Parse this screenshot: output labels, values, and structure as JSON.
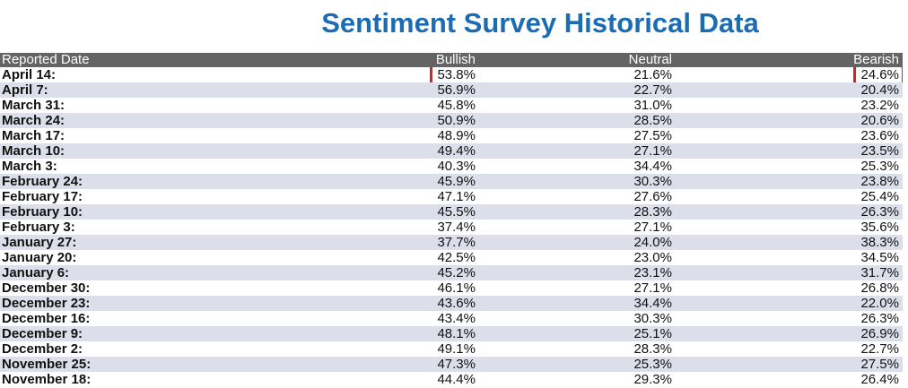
{
  "title": "Sentiment Survey Historical Data",
  "highlight_color": "#e0201c",
  "columns": [
    "Reported Date",
    "Bullish",
    "Neutral",
    "Bearish"
  ],
  "rows": [
    {
      "date": "April 14:",
      "bullish": "53.8%",
      "neutral": "21.6%",
      "bearish": "24.6%"
    },
    {
      "date": "April 7:",
      "bullish": "56.9%",
      "neutral": "22.7%",
      "bearish": "20.4%"
    },
    {
      "date": "March 31:",
      "bullish": "45.8%",
      "neutral": "31.0%",
      "bearish": "23.2%"
    },
    {
      "date": "March 24:",
      "bullish": "50.9%",
      "neutral": "28.5%",
      "bearish": "20.6%"
    },
    {
      "date": "March 17:",
      "bullish": "48.9%",
      "neutral": "27.5%",
      "bearish": "23.6%"
    },
    {
      "date": "March 10:",
      "bullish": "49.4%",
      "neutral": "27.1%",
      "bearish": "23.5%"
    },
    {
      "date": "March 3:",
      "bullish": "40.3%",
      "neutral": "34.4%",
      "bearish": "25.3%"
    },
    {
      "date": "February 24:",
      "bullish": "45.9%",
      "neutral": "30.3%",
      "bearish": "23.8%"
    },
    {
      "date": "February 17:",
      "bullish": "47.1%",
      "neutral": "27.6%",
      "bearish": "25.4%"
    },
    {
      "date": "February 10:",
      "bullish": "45.5%",
      "neutral": "28.3%",
      "bearish": "26.3%"
    },
    {
      "date": "February 3:",
      "bullish": "37.4%",
      "neutral": "27.1%",
      "bearish": "35.6%"
    },
    {
      "date": "January 27:",
      "bullish": "37.7%",
      "neutral": "24.0%",
      "bearish": "38.3%"
    },
    {
      "date": "January 20:",
      "bullish": "42.5%",
      "neutral": "23.0%",
      "bearish": "34.5%"
    },
    {
      "date": "January 6:",
      "bullish": "45.2%",
      "neutral": "23.1%",
      "bearish": "31.7%"
    },
    {
      "date": "December 30:",
      "bullish": "46.1%",
      "neutral": "27.1%",
      "bearish": "26.8%"
    },
    {
      "date": "December 23:",
      "bullish": "43.6%",
      "neutral": "34.4%",
      "bearish": "22.0%"
    },
    {
      "date": "December 16:",
      "bullish": "43.4%",
      "neutral": "30.3%",
      "bearish": "26.3%"
    },
    {
      "date": "December 9:",
      "bullish": "48.1%",
      "neutral": "25.1%",
      "bearish": "26.9%"
    },
    {
      "date": "December 2:",
      "bullish": "49.1%",
      "neutral": "28.3%",
      "bearish": "22.7%"
    },
    {
      "date": "November 25:",
      "bullish": "47.3%",
      "neutral": "25.3%",
      "bearish": "27.5%"
    },
    {
      "date": "November 18:",
      "bullish": "44.4%",
      "neutral": "29.3%",
      "bearish": "26.4%"
    }
  ]
}
